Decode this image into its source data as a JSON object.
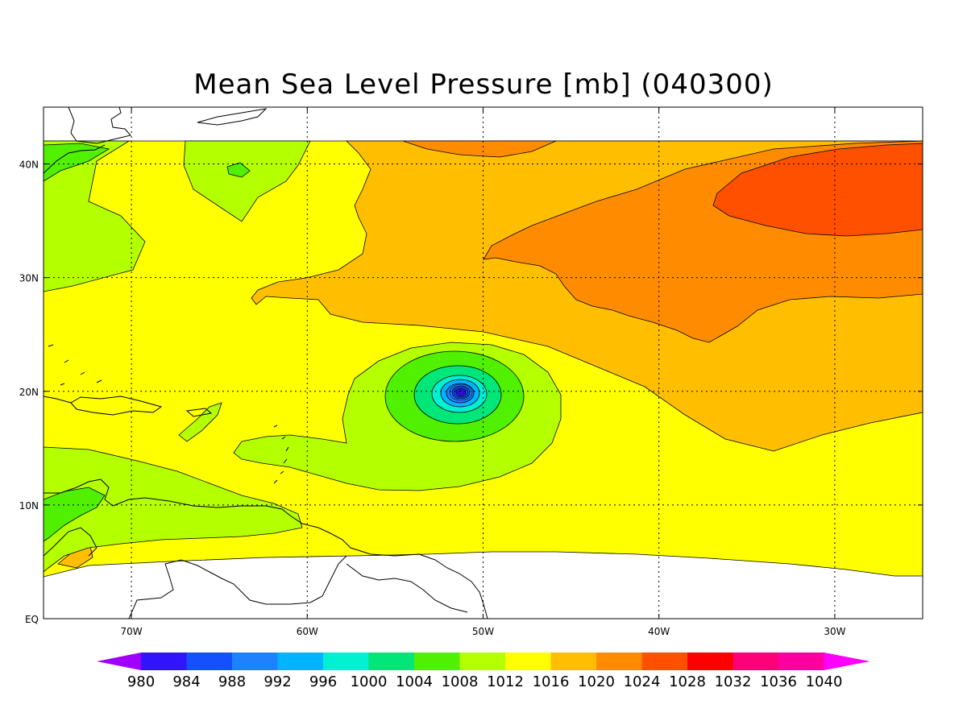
{
  "title": "Mean Sea Level Pressure [mb] (040300)",
  "map": {
    "lon_range": [
      -75,
      -25
    ],
    "lat_range": [
      0,
      45
    ],
    "grid": true
  },
  "ticks": {
    "x": [
      {
        "lon": -70,
        "label": "70W"
      },
      {
        "lon": -60,
        "label": "60W"
      },
      {
        "lon": -50,
        "label": "50W"
      },
      {
        "lon": -40,
        "label": "40W"
      },
      {
        "lon": -30,
        "label": "30W"
      }
    ],
    "y": [
      {
        "lat": 0,
        "label": "EQ"
      },
      {
        "lat": 10,
        "label": "10N"
      },
      {
        "lat": 20,
        "label": "20N"
      },
      {
        "lat": 30,
        "label": "30N"
      },
      {
        "lat": 40,
        "label": "40N"
      }
    ]
  },
  "colorbar": {
    "labels": [
      "980",
      "984",
      "988",
      "992",
      "996",
      "1000",
      "1004",
      "1008",
      "1012",
      "1016",
      "1020",
      "1024",
      "1028",
      "1032",
      "1036",
      "1040"
    ],
    "colors": [
      "#a000ff",
      "#3214ff",
      "#1450ff",
      "#1e82ff",
      "#00b4ff",
      "#00f0d2",
      "#00e678",
      "#50f000",
      "#b4ff00",
      "#ffff00",
      "#ffbe00",
      "#ff8c00",
      "#ff5000",
      "#ff0000",
      "#ff0078",
      "#ff00a0",
      "#ff00ff"
    ]
  },
  "colors": {
    "c1008": "#b4ff00",
    "c1012": "#ffff00",
    "c1016": "#ffbe00",
    "c1020": "#ff8c00",
    "c1024": "#ff5000",
    "c1004": "#50f000",
    "c1000": "#00e678",
    "c996": "#00f0d2",
    "c992": "#00b4ff",
    "c988": "#1e82ff",
    "c984": "#1450ff",
    "c980": "#3214ff"
  },
  "low_center": {
    "lon": -51.2,
    "lat": 19.9
  }
}
